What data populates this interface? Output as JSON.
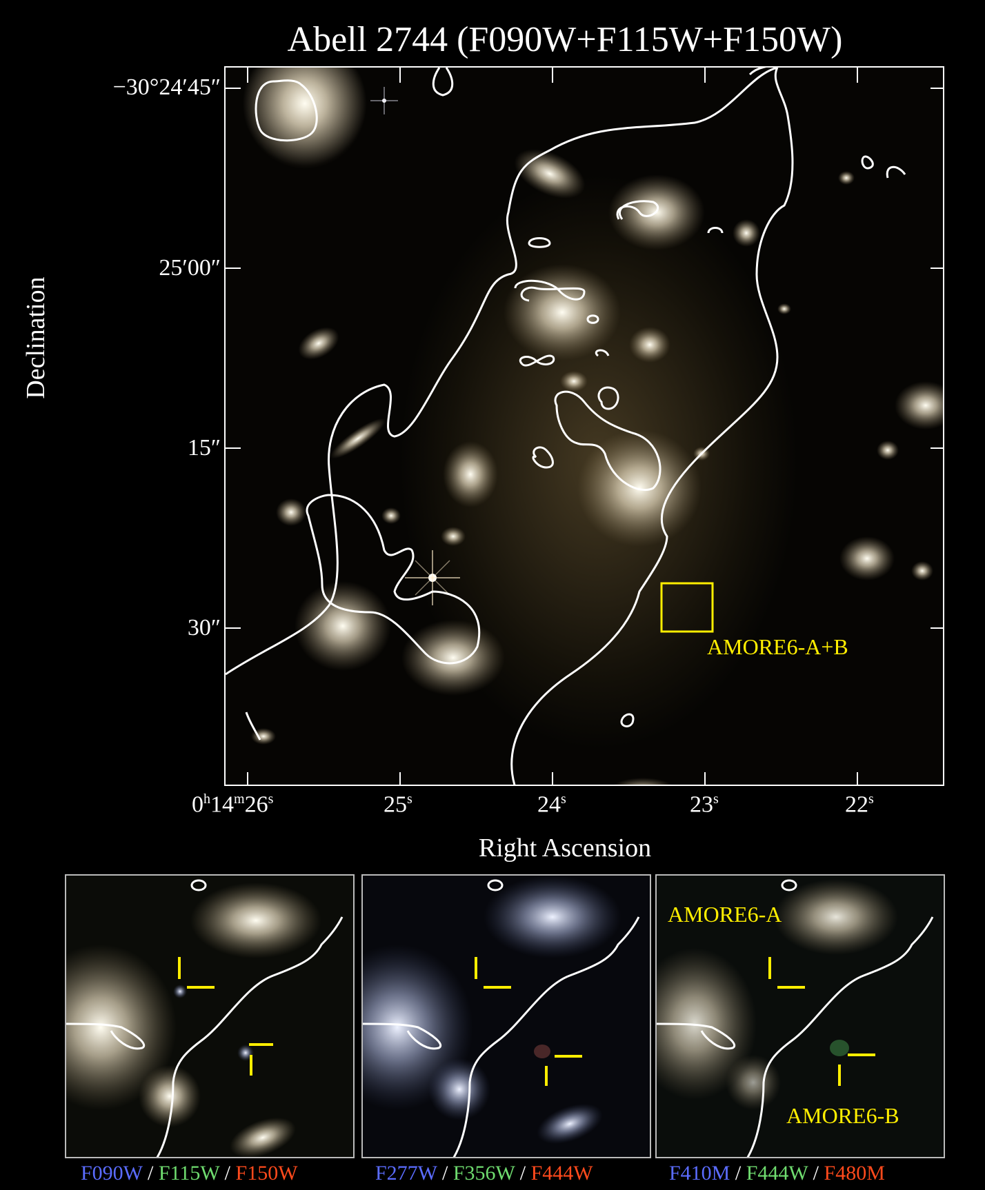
{
  "title": "Abell 2744 (F090W+F115W+F150W)",
  "axes": {
    "xlabel": "Right Ascension",
    "ylabel": "Declination",
    "ra_ticks": [
      {
        "h": "0",
        "m": "14",
        "s": "26"
      },
      {
        "s": "25"
      },
      {
        "s": "24"
      },
      {
        "s": "23"
      },
      {
        "s": "22"
      }
    ],
    "dec_ticks": [
      "−30°24′45″",
      "25′00″",
      "15″",
      "30″"
    ]
  },
  "roi": {
    "label": "AMORE6-A+B",
    "color": "#ffee00"
  },
  "insets": [
    {
      "filters": [
        {
          "name": "F090W",
          "color": "#5b6cff"
        },
        {
          "name": "F115W",
          "color": "#6fdc6f"
        },
        {
          "name": "F150W",
          "color": "#ff4a1c"
        }
      ]
    },
    {
      "filters": [
        {
          "name": "F277W",
          "color": "#5b6cff"
        },
        {
          "name": "F356W",
          "color": "#6fdc6f"
        },
        {
          "name": "F444W",
          "color": "#ff4a1c"
        }
      ]
    },
    {
      "filters": [
        {
          "name": "F410M",
          "color": "#5b6cff"
        },
        {
          "name": "F444W",
          "color": "#6fdc6f"
        },
        {
          "name": "F480M",
          "color": "#ff4a1c"
        }
      ],
      "labels": {
        "a": "AMORE6-A",
        "b": "AMORE6-B"
      }
    }
  ],
  "separator": " / "
}
